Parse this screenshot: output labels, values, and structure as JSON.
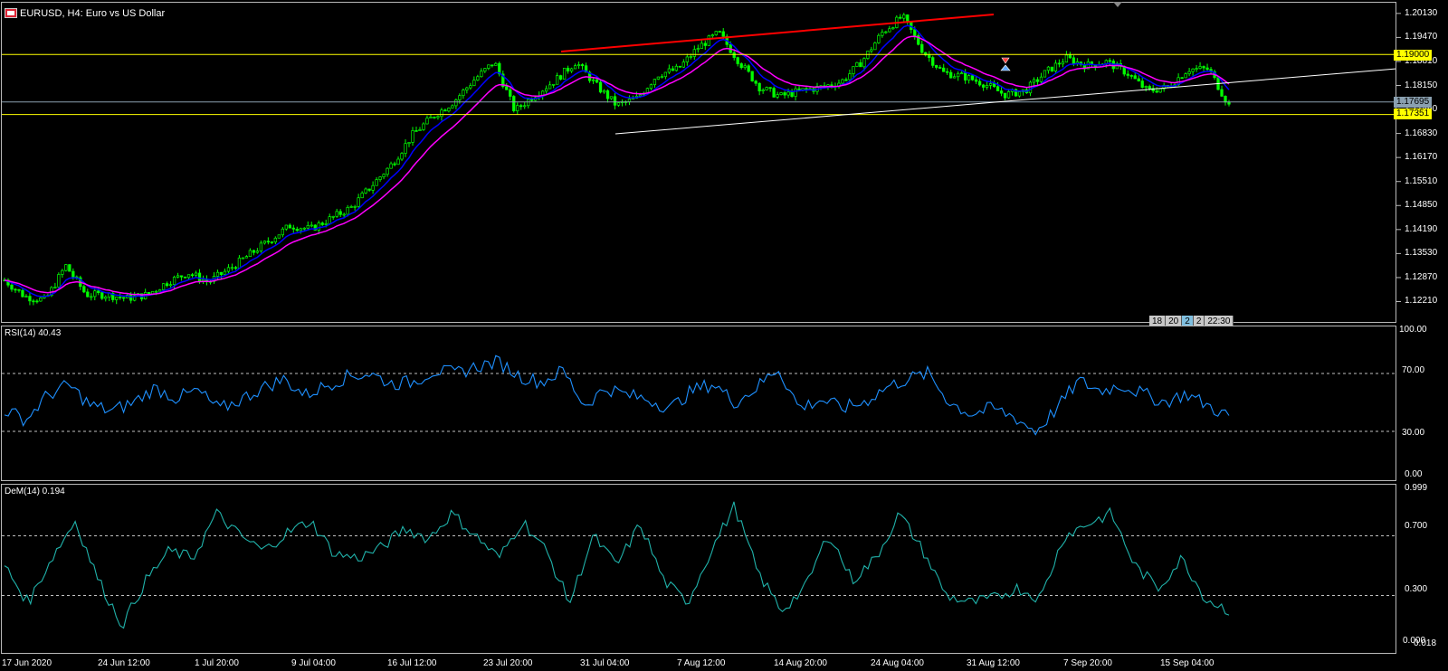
{
  "window": {
    "title": "EURUSD, H4:  Euro vs US Dollar",
    "symbol_icon": "chart-window-icon"
  },
  "price_axis": {
    "ticks": [
      "1.20130",
      "1.19470",
      "1.18810",
      "1.18150",
      "1.17490",
      "1.16830",
      "1.16170",
      "1.15510",
      "1.14850",
      "1.14190",
      "1.13530",
      "1.12870",
      "1.12210"
    ],
    "range": [
      1.1175,
      1.203
    ]
  },
  "price_tags": {
    "resistance": {
      "label": "1.19000",
      "color": "#ffff00",
      "value": 1.19
    },
    "current": {
      "label": "1.17695",
      "color": "#8aa0b0",
      "value": 1.17695
    },
    "support": {
      "label": "1.17351",
      "color": "#ffff00",
      "value": 1.17351
    }
  },
  "mini_scale": [
    "18",
    "20",
    "2",
    "2",
    "22:30"
  ],
  "rsi": {
    "label": "RSI(14) 40.43",
    "ticks": [
      "100.00",
      "70.00",
      "30.00",
      "0.00"
    ],
    "levels": [
      70,
      30
    ],
    "color": "#1e90ff"
  },
  "dem": {
    "label": "DeM(14) 0.194",
    "ticks": [
      "0.999",
      "0.700",
      "0.300",
      "0.000",
      "0.018"
    ],
    "levels": [
      0.7,
      0.3
    ],
    "color": "#20b2aa"
  },
  "time_axis": [
    "17 Jun 2020",
    "24 Jun 12:00",
    "1 Jul 20:00",
    "9 Jul 04:00",
    "16 Jul 12:00",
    "23 Jul 20:00",
    "31 Jul 04:00",
    "7 Aug 12:00",
    "14 Aug 20:00",
    "24 Aug 04:00",
    "31 Aug 12:00",
    "7 Sep 20:00",
    "15 Sep 04:00"
  ],
  "colors": {
    "candle": "#00ff00",
    "ma_fast": "#0000ff",
    "ma_slow": "#ff00ff",
    "trend_top": "#ff0000",
    "trend_bottom": "#ffffff",
    "hline": "#ffff00"
  },
  "chart_data": {
    "type": "line",
    "title": "EURUSD, H4:  Euro vs US Dollar",
    "price_keypoints": [
      1.128,
      1.1235,
      1.1225,
      1.132,
      1.124,
      1.124,
      1.123,
      1.124,
      1.1275,
      1.13,
      1.1275,
      1.131,
      1.135,
      1.139,
      1.143,
      1.142,
      1.145,
      1.148,
      1.154,
      1.16,
      1.168,
      1.173,
      1.177,
      1.183,
      1.188,
      1.1745,
      1.179,
      1.183,
      1.188,
      1.1815,
      1.176,
      1.178,
      1.1845,
      1.186,
      1.192,
      1.196,
      1.188,
      1.181,
      1.1785,
      1.18,
      1.181,
      1.1825,
      1.188,
      1.196,
      1.2005,
      1.191,
      1.185,
      1.184,
      1.182,
      1.179,
      1.18,
      1.185,
      1.189,
      1.187,
      1.188,
      1.185,
      1.18,
      1.181,
      1.186,
      1.186,
      1.176
    ],
    "rsi_keypoints": [
      45,
      38,
      55,
      62,
      48,
      44,
      50,
      60,
      53,
      58,
      45,
      52,
      60,
      66,
      55,
      62,
      68,
      70,
      63,
      64,
      72,
      70,
      75,
      78,
      68,
      64,
      72,
      48,
      60,
      55,
      52,
      46,
      58,
      63,
      50,
      60,
      74,
      46,
      52,
      46,
      50,
      60,
      66,
      70,
      50,
      42,
      46,
      40,
      30,
      46,
      65,
      58,
      62,
      56,
      50,
      56,
      48,
      40
    ],
    "dem_keypoints": [
      0.5,
      0.25,
      0.55,
      0.8,
      0.4,
      0.1,
      0.4,
      0.6,
      0.55,
      0.85,
      0.7,
      0.6,
      0.72,
      0.8,
      0.58,
      0.55,
      0.62,
      0.75,
      0.68,
      0.85,
      0.7,
      0.55,
      0.8,
      0.6,
      0.25,
      0.7,
      0.5,
      0.78,
      0.4,
      0.25,
      0.6,
      0.9,
      0.45,
      0.2,
      0.35,
      0.72,
      0.4,
      0.55,
      0.85,
      0.6,
      0.3,
      0.25,
      0.28,
      0.35,
      0.28,
      0.7,
      0.78,
      0.85,
      0.5,
      0.35,
      0.55,
      0.28,
      0.2
    ]
  }
}
